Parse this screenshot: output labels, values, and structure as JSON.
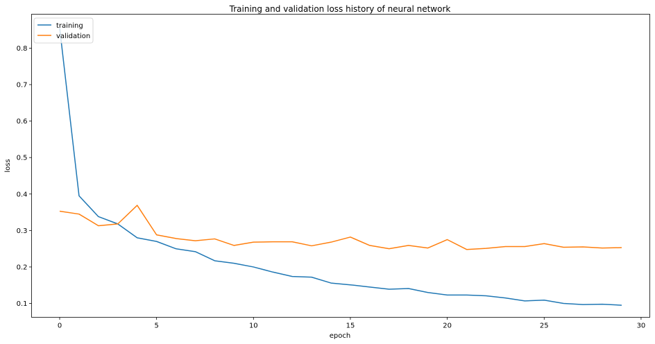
{
  "chart_data": {
    "type": "line",
    "title": "Training and validation loss history of neural network",
    "xlabel": "epoch",
    "ylabel": "loss",
    "xlim": [
      -1.45,
      30.45
    ],
    "ylim": [
      0.062,
      0.893
    ],
    "xticks": [
      0,
      5,
      10,
      15,
      20,
      25,
      30
    ],
    "yticks": [
      0.1,
      0.2,
      0.3,
      0.4,
      0.5,
      0.6,
      0.7,
      0.8
    ],
    "grid": false,
    "legend_position": "top-left",
    "x": [
      0,
      1,
      2,
      3,
      4,
      5,
      6,
      7,
      8,
      9,
      10,
      11,
      12,
      13,
      14,
      15,
      16,
      17,
      18,
      19,
      20,
      21,
      22,
      23,
      24,
      25,
      26,
      27,
      28,
      29
    ],
    "series": [
      {
        "name": "training",
        "color": "#1f77b4",
        "values": [
          0.855,
          0.395,
          0.338,
          0.318,
          0.28,
          0.27,
          0.25,
          0.242,
          0.217,
          0.21,
          0.2,
          0.186,
          0.174,
          0.172,
          0.156,
          0.151,
          0.145,
          0.139,
          0.141,
          0.13,
          0.123,
          0.123,
          0.121,
          0.115,
          0.107,
          0.109,
          0.1,
          0.097,
          0.098,
          0.095
        ]
      },
      {
        "name": "validation",
        "color": "#ff7f0e",
        "values": [
          0.353,
          0.345,
          0.313,
          0.318,
          0.369,
          0.288,
          0.278,
          0.272,
          0.277,
          0.259,
          0.268,
          0.269,
          0.269,
          0.258,
          0.268,
          0.282,
          0.259,
          0.25,
          0.259,
          0.252,
          0.275,
          0.248,
          0.251,
          0.256,
          0.256,
          0.264,
          0.254,
          0.255,
          0.252,
          0.253
        ]
      }
    ]
  }
}
